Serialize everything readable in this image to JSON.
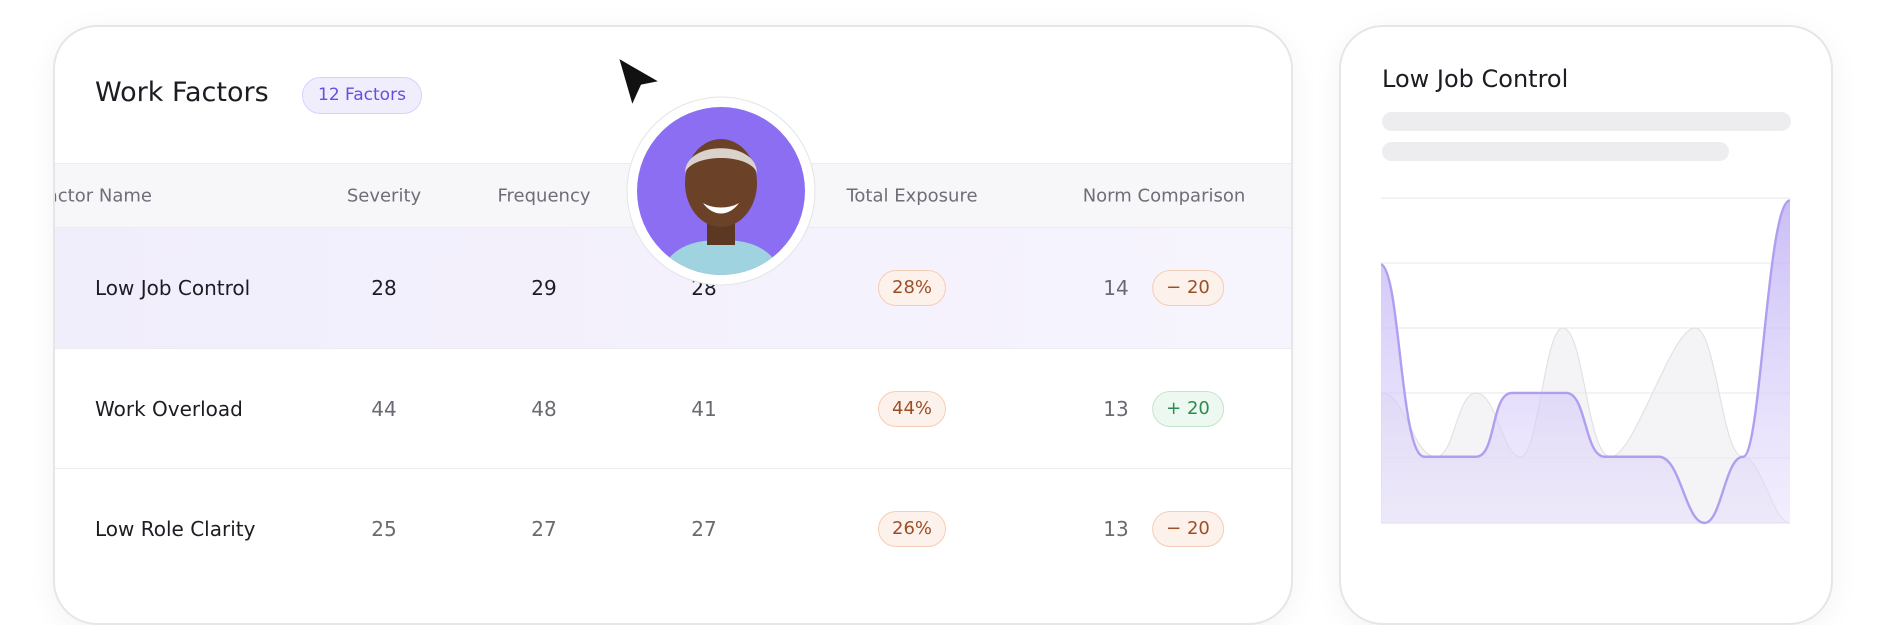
{
  "header": {
    "title": "Work Factors",
    "badge": "12 Factors"
  },
  "table": {
    "columns": [
      "Factor Name",
      "Severity",
      "Frequency",
      "Total Exposure",
      "Norm Comparison"
    ],
    "rows": [
      [
        "Low Job Control",
        28,
        29,
        28,
        "28%",
        14,
        "− 20"
      ],
      [
        "Work Overload",
        44,
        48,
        41,
        "44%",
        13,
        "+ 20"
      ],
      [
        "Low Role Clarity",
        25,
        27,
        27,
        "26%",
        13,
        "− 20"
      ]
    ]
  },
  "panel": {
    "title": "Low Job Control"
  }
}
